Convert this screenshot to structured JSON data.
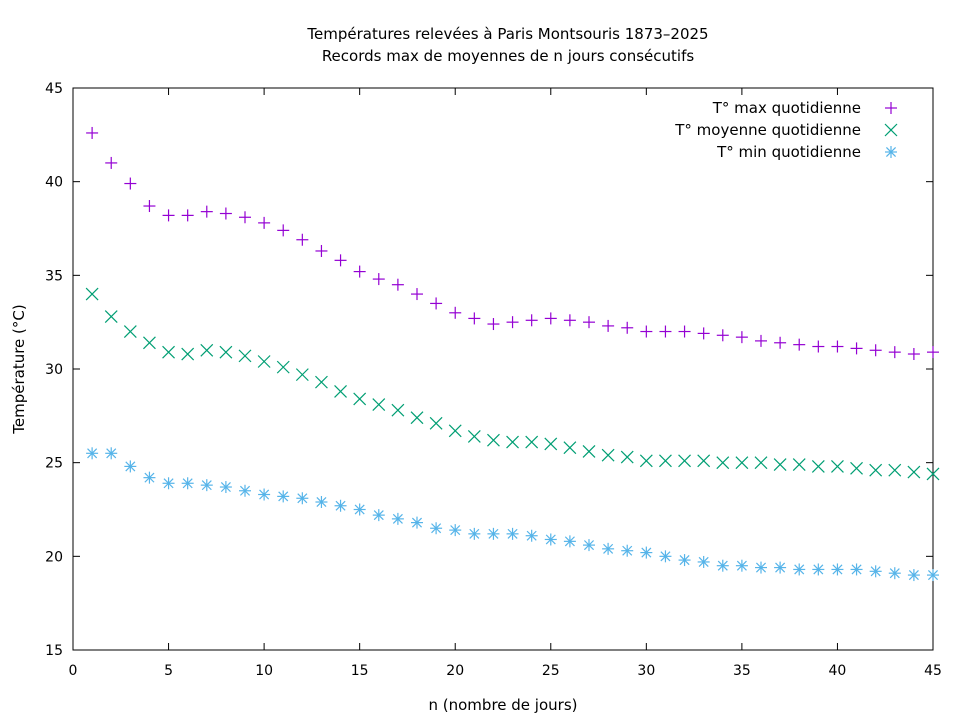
{
  "chart_data": {
    "type": "scatter",
    "title": "Températures relevées à Paris Montsouris 1873–2025",
    "subtitle": "Records max de moyennes de n jours consécutifs",
    "xlabel": "n (nombre de jours)",
    "ylabel": "Température (°C)",
    "xlim": [
      0,
      45
    ],
    "ylim": [
      15,
      45
    ],
    "xticks": [
      0,
      5,
      10,
      15,
      20,
      25,
      30,
      35,
      40,
      45
    ],
    "yticks": [
      15,
      20,
      25,
      30,
      35,
      40,
      45
    ],
    "grid": false,
    "legend_position": "top-right",
    "x": [
      1,
      2,
      3,
      4,
      5,
      6,
      7,
      8,
      9,
      10,
      11,
      12,
      13,
      14,
      15,
      16,
      17,
      18,
      19,
      20,
      21,
      22,
      23,
      24,
      25,
      26,
      27,
      28,
      29,
      30,
      31,
      32,
      33,
      34,
      35,
      36,
      37,
      38,
      39,
      40,
      41,
      42,
      43,
      44,
      45
    ],
    "series": [
      {
        "name": "T° max quotidienne",
        "marker": "plus",
        "color": "#9400d3",
        "values": [
          42.6,
          41.0,
          39.9,
          38.7,
          38.2,
          38.2,
          38.4,
          38.3,
          38.1,
          37.8,
          37.4,
          36.9,
          36.3,
          35.8,
          35.2,
          34.8,
          34.5,
          34.0,
          33.5,
          33.0,
          32.7,
          32.4,
          32.5,
          32.6,
          32.7,
          32.6,
          32.5,
          32.3,
          32.2,
          32.0,
          32.0,
          32.0,
          31.9,
          31.8,
          31.7,
          31.5,
          31.4,
          31.3,
          31.2,
          31.2,
          31.1,
          31.0,
          30.9,
          30.8,
          30.9
        ]
      },
      {
        "name": "T° moyenne quotidienne",
        "marker": "cross",
        "color": "#009e73",
        "values": [
          34.0,
          32.8,
          32.0,
          31.4,
          30.9,
          30.8,
          31.0,
          30.9,
          30.7,
          30.4,
          30.1,
          29.7,
          29.3,
          28.8,
          28.4,
          28.1,
          27.8,
          27.4,
          27.1,
          26.7,
          26.4,
          26.2,
          26.1,
          26.1,
          26.0,
          25.8,
          25.6,
          25.4,
          25.3,
          25.1,
          25.1,
          25.1,
          25.1,
          25.0,
          25.0,
          25.0,
          24.9,
          24.9,
          24.8,
          24.8,
          24.7,
          24.6,
          24.6,
          24.5,
          24.4
        ]
      },
      {
        "name": "T° min quotidienne",
        "marker": "star",
        "color": "#56b4e9",
        "values": [
          25.5,
          25.5,
          24.8,
          24.2,
          23.9,
          23.9,
          23.8,
          23.7,
          23.5,
          23.3,
          23.2,
          23.1,
          22.9,
          22.7,
          22.5,
          22.2,
          22.0,
          21.8,
          21.5,
          21.4,
          21.2,
          21.2,
          21.2,
          21.1,
          20.9,
          20.8,
          20.6,
          20.4,
          20.3,
          20.2,
          20.0,
          19.8,
          19.7,
          19.5,
          19.5,
          19.4,
          19.4,
          19.3,
          19.3,
          19.3,
          19.3,
          19.2,
          19.1,
          19.0,
          19.0
        ]
      }
    ]
  }
}
